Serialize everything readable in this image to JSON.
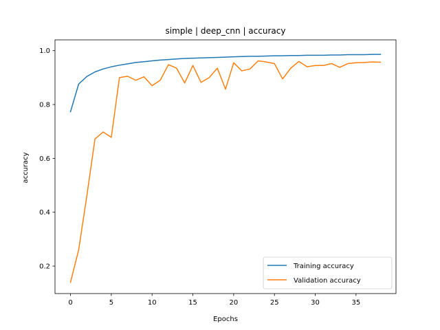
{
  "chart_data": {
    "type": "line",
    "title": "simple | deep_cnn | accuracy",
    "xlabel": "Epochs",
    "ylabel": "accuracy",
    "xlim": [
      -1.9,
      39.9
    ],
    "ylim": [
      0.098,
      1.04
    ],
    "xticks": [
      0,
      5,
      10,
      15,
      20,
      25,
      30,
      35
    ],
    "yticks": [
      0.2,
      0.4,
      0.6,
      0.8,
      1.0
    ],
    "ytick_labels": [
      "0.2",
      "0.4",
      "0.6",
      "0.8",
      "1.0"
    ],
    "grid": false,
    "legend_position": "lower-right",
    "x": [
      0,
      1,
      2,
      3,
      4,
      5,
      6,
      7,
      8,
      9,
      10,
      11,
      12,
      13,
      14,
      15,
      16,
      17,
      18,
      19,
      20,
      21,
      22,
      23,
      24,
      25,
      26,
      27,
      28,
      29,
      30,
      31,
      32,
      33,
      34,
      35,
      36,
      37,
      38
    ],
    "series": [
      {
        "name": "Training accuracy",
        "color": "#1f77b4",
        "values": [
          0.773,
          0.876,
          0.904,
          0.921,
          0.932,
          0.94,
          0.946,
          0.951,
          0.956,
          0.959,
          0.962,
          0.965,
          0.967,
          0.969,
          0.971,
          0.972,
          0.973,
          0.974,
          0.975,
          0.976,
          0.977,
          0.978,
          0.979,
          0.979,
          0.98,
          0.981,
          0.981,
          0.982,
          0.982,
          0.983,
          0.983,
          0.983,
          0.984,
          0.984,
          0.985,
          0.985,
          0.985,
          0.986,
          0.986
        ]
      },
      {
        "name": "Validation accuracy",
        "color": "#ff7f0e",
        "values": [
          0.14,
          0.26,
          0.46,
          0.672,
          0.698,
          0.678,
          0.9,
          0.905,
          0.89,
          0.903,
          0.87,
          0.89,
          0.948,
          0.935,
          0.88,
          0.945,
          0.882,
          0.9,
          0.935,
          0.857,
          0.955,
          0.925,
          0.932,
          0.962,
          0.958,
          0.952,
          0.895,
          0.935,
          0.96,
          0.94,
          0.945,
          0.945,
          0.952,
          0.938,
          0.952,
          0.955,
          0.956,
          0.958,
          0.957
        ]
      }
    ]
  }
}
